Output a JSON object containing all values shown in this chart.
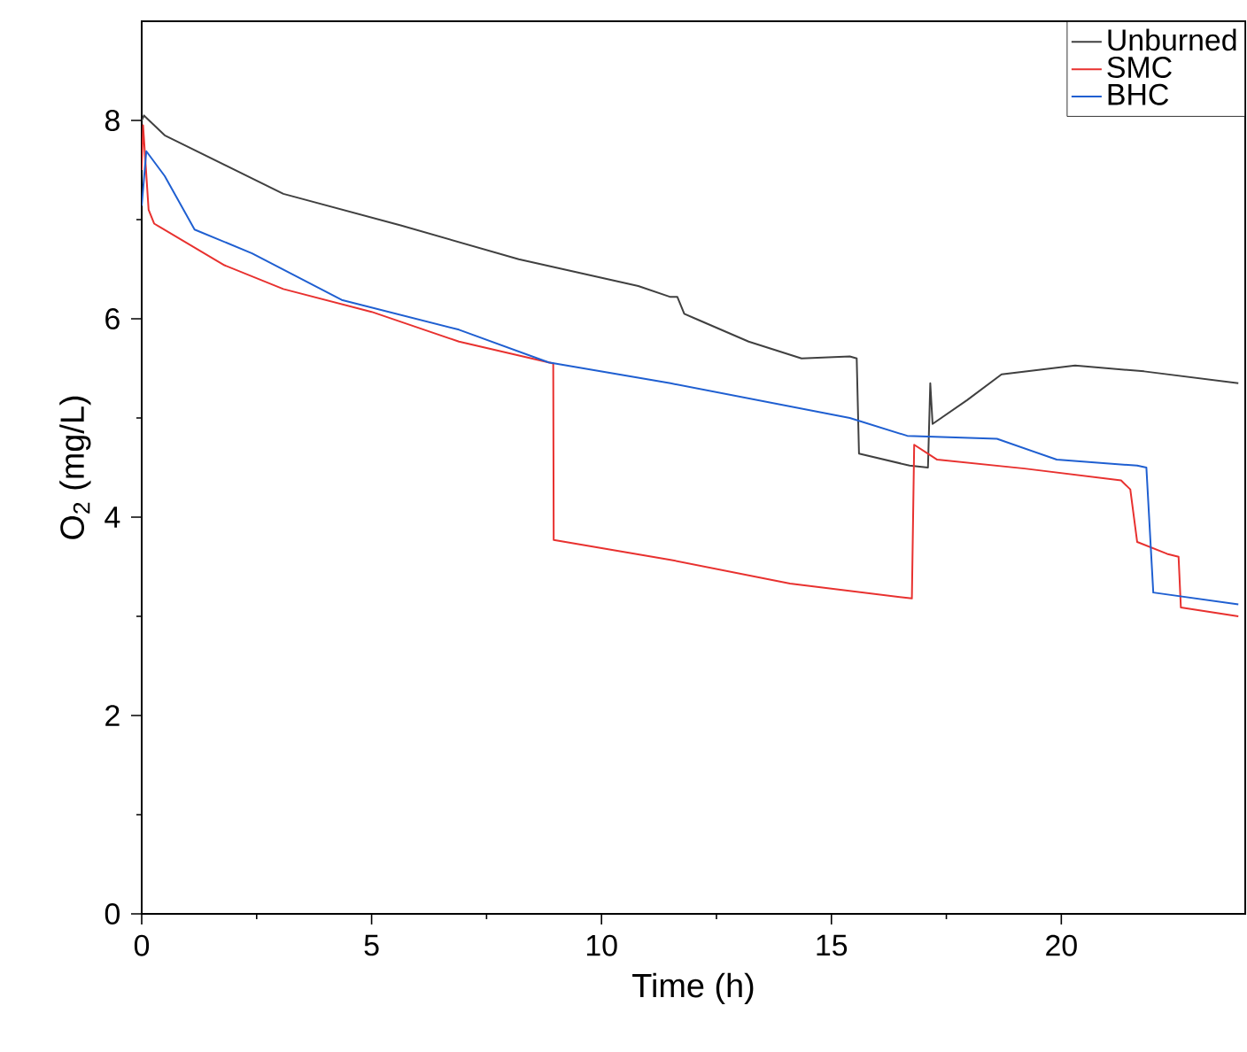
{
  "chart_data": {
    "type": "line",
    "xlabel": "Time (h)",
    "ylabel": "O$_{2}$ (mg/L)",
    "xlim": [
      0,
      24
    ],
    "ylim": [
      0,
      9
    ],
    "xticks": [
      0,
      5,
      10,
      15,
      20
    ],
    "yticks": [
      0,
      2,
      4,
      6,
      8
    ],
    "grid": false,
    "legend": "top right",
    "marker": "none",
    "line_style": "solid",
    "series": [
      {
        "name": "Unburned",
        "color": "#404040",
        "x": [
          0,
          0.05,
          0.5,
          3.08,
          5.65,
          8.2,
          10.8,
          11.5,
          11.65,
          11.8,
          12.05,
          13.2,
          14.35,
          15.4,
          15.55,
          15.6,
          16.7,
          17.1,
          17.15,
          17.2,
          17.95,
          18.7,
          20.3,
          21.8,
          23.85
        ],
        "values": [
          8.0,
          8.05,
          7.85,
          7.26,
          6.94,
          6.6,
          6.33,
          6.22,
          6.22,
          6.05,
          6.0,
          5.77,
          5.6,
          5.62,
          5.6,
          4.64,
          4.52,
          4.5,
          5.35,
          4.94,
          5.18,
          5.44,
          5.53,
          5.47,
          5.35
        ]
      },
      {
        "name": "SMC",
        "color": "#e8312f",
        "x": [
          0,
          0.03,
          0.15,
          0.27,
          1.8,
          3.08,
          5.0,
          6.9,
          8.85,
          8.95,
          8.96,
          11.5,
          14.1,
          16.75,
          16.8,
          17.3,
          19.2,
          21.3,
          21.5,
          21.65,
          22.3,
          22.55,
          22.6,
          23.85
        ],
        "values": [
          7.5,
          7.95,
          7.1,
          6.96,
          6.54,
          6.3,
          6.07,
          5.77,
          5.56,
          5.55,
          3.77,
          3.57,
          3.33,
          3.18,
          4.73,
          4.58,
          4.49,
          4.37,
          4.28,
          3.75,
          3.63,
          3.6,
          3.09,
          3.0
        ]
      },
      {
        "name": "BHC",
        "color": "#1f5fd1",
        "x": [
          0,
          0.1,
          0.5,
          1.15,
          2.4,
          4.35,
          6.9,
          8.85,
          11.5,
          15.4,
          16.65,
          18.6,
          19.9,
          21.65,
          21.85,
          22.0,
          23.85
        ],
        "values": [
          7.14,
          7.69,
          7.44,
          6.9,
          6.66,
          6.19,
          5.89,
          5.56,
          5.35,
          5.0,
          4.82,
          4.79,
          4.58,
          4.52,
          4.5,
          3.24,
          3.12
        ]
      }
    ]
  }
}
